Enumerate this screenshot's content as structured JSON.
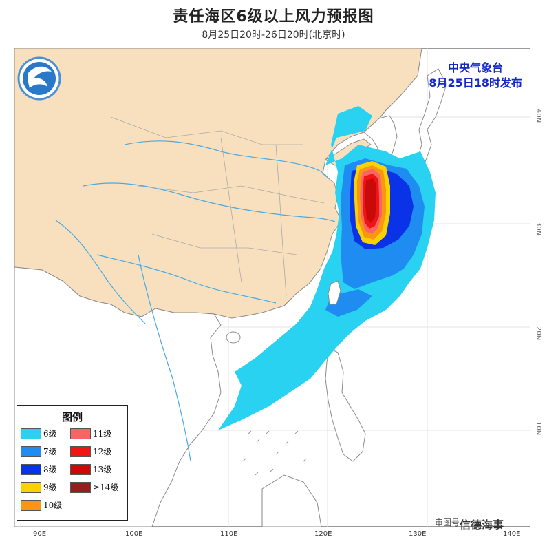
{
  "title": "责任海区6级以上风力预报图",
  "subtitle": "8月25日20时-26日20时(北京时)",
  "issuer": {
    "name": "中央气象台",
    "issued": "8月25日18时发布"
  },
  "legend": {
    "title": "图例",
    "items": [
      {
        "label": "6级",
        "color": "#28d2f0"
      },
      {
        "label": "11级",
        "color": "#fa6464"
      },
      {
        "label": "7级",
        "color": "#1e8cf0"
      },
      {
        "label": "12级",
        "color": "#f01414"
      },
      {
        "label": "8级",
        "color": "#0a32e6"
      },
      {
        "label": "13级",
        "color": "#c80a0a"
      },
      {
        "label": "9级",
        "color": "#fad200"
      },
      {
        "label": "≥14级",
        "color": "#961e1e"
      },
      {
        "label": "10级",
        "color": "#fa9614"
      }
    ]
  },
  "axes": {
    "lon_labels": [
      "90E",
      "100E",
      "110E",
      "120E",
      "130E",
      "140E"
    ],
    "lat_labels": [
      "10N",
      "20N",
      "30N",
      "40N"
    ]
  },
  "footer": {
    "watermark": "审图号",
    "brand": "信德海事"
  },
  "colors": {
    "land": "#f8e0be",
    "sea": "#ffffff",
    "river": "#46aae6",
    "border": "#999999"
  }
}
